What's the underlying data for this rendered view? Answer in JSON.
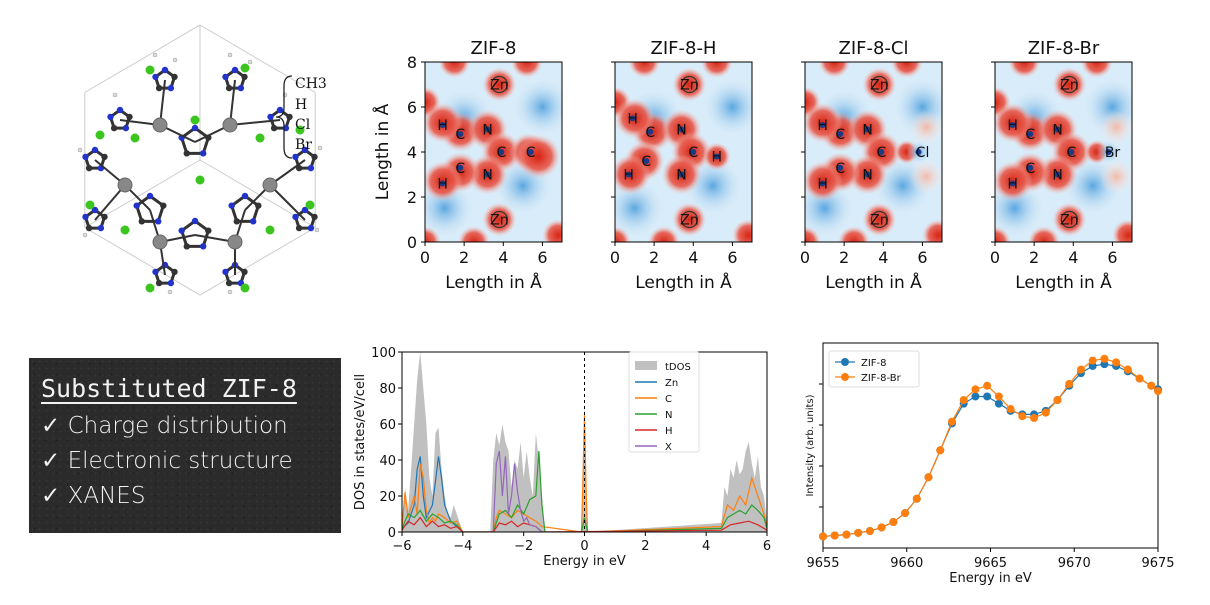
{
  "molecule": {
    "substituents": [
      "CH$_3$",
      "H",
      "Cl",
      "Br"
    ],
    "substituent_display": [
      "CH3",
      "H",
      "Cl",
      "Br"
    ]
  },
  "blackboard": {
    "title": "Substituted ZIF-8",
    "items": [
      "Charge distribution",
      "Electronic structure",
      "XANES"
    ]
  },
  "chart_data": [
    {
      "type": "heatmap",
      "panels": [
        {
          "title": "ZIF-8",
          "substituent": "C"
        },
        {
          "title": "ZIF-8-H",
          "substituent": "H"
        },
        {
          "title": "ZIF-8-Cl",
          "substituent": "Cl"
        },
        {
          "title": "ZIF-8-Br",
          "substituent": "Br"
        }
      ],
      "xlabel": "Length in Å",
      "ylabel": "Length in Å",
      "xlim": [
        0,
        7
      ],
      "ylim": [
        0,
        8
      ],
      "xticks": [
        0,
        2,
        4,
        6
      ],
      "yticks": [
        0,
        2,
        4,
        6,
        8
      ],
      "atom_labels": [
        "Zn",
        "N",
        "C",
        "H"
      ]
    },
    {
      "type": "area",
      "xlabel": "Energy in eV",
      "ylabel": "DOS in states/eV/cell",
      "xlim": [
        -6,
        6
      ],
      "ylim": [
        0,
        100
      ],
      "xticks": [
        -6,
        -4,
        -2,
        0,
        2,
        4,
        6
      ],
      "yticks": [
        0,
        20,
        40,
        60,
        80,
        100
      ],
      "fermi_level": 0,
      "legend": [
        "tDOS",
        "Zn",
        "C",
        "N",
        "H",
        "X"
      ],
      "colors": {
        "tDOS": "#c0c0c0",
        "Zn": "#1f77b4",
        "C": "#ff7f0e",
        "N": "#2ca02c",
        "H": "#d62728",
        "X": "#9467bd"
      },
      "series": [
        {
          "name": "tDOS",
          "x": [
            -6,
            -5.9,
            -5.8,
            -5.7,
            -5.6,
            -5.5,
            -5.4,
            -5.3,
            -5.2,
            -5.1,
            -5.0,
            -4.9,
            -4.8,
            -4.7,
            -4.6,
            -4.5,
            -4.4,
            -4.3,
            -4.2,
            -4.1,
            -4.0,
            -3.1,
            -3.0,
            -2.9,
            -2.8,
            -2.7,
            -2.6,
            -2.5,
            -2.4,
            -2.3,
            -2.2,
            -2.1,
            -2.0,
            -1.9,
            -1.8,
            -1.7,
            -1.6,
            -1.5,
            -1.4,
            -1.3,
            -0.1,
            -0.05,
            0,
            0.05,
            0.1,
            4.5,
            4.6,
            4.7,
            4.8,
            4.9,
            5.0,
            5.1,
            5.2,
            5.3,
            5.4,
            5.5,
            5.6,
            5.7,
            5.8,
            5.9,
            6.0
          ],
          "y": [
            5,
            25,
            12,
            35,
            60,
            85,
            100,
            80,
            60,
            30,
            20,
            55,
            58,
            35,
            20,
            10,
            8,
            15,
            10,
            5,
            0,
            0,
            40,
            55,
            48,
            60,
            50,
            45,
            25,
            40,
            35,
            50,
            30,
            45,
            30,
            20,
            55,
            40,
            20,
            0,
            0,
            35,
            72,
            30,
            0,
            5,
            25,
            20,
            35,
            30,
            40,
            32,
            35,
            45,
            50,
            38,
            30,
            42,
            25,
            20,
            5
          ]
        },
        {
          "name": "Zn",
          "x": [
            -6,
            -5.8,
            -5.6,
            -5.5,
            -5.4,
            -5.3,
            -5.2,
            -5.0,
            -4.9,
            -4.8,
            -4.7,
            -4.6,
            -4.4,
            -4.2,
            -4.0
          ],
          "y": [
            2,
            5,
            15,
            35,
            42,
            20,
            8,
            15,
            28,
            42,
            30,
            15,
            6,
            3,
            0
          ]
        },
        {
          "name": "C",
          "x": [
            -6,
            -5.9,
            -5.8,
            -5.6,
            -5.5,
            -5.4,
            -5.3,
            -5.2,
            -5.1,
            -5.0,
            -4.9,
            -4.8,
            -4.6,
            -4.4,
            -4.2,
            -4.0,
            -3.0,
            -2.9,
            -2.8,
            -2.6,
            -2.4,
            -2.2,
            -2.0,
            -1.8,
            -1.6,
            -1.4,
            -0.1,
            -0.05,
            0,
            0.05,
            0.1,
            4.5,
            4.7,
            4.9,
            5.1,
            5.3,
            5.5,
            5.7,
            5.9,
            6.0
          ],
          "y": [
            3,
            22,
            8,
            20,
            10,
            38,
            30,
            12,
            5,
            8,
            6,
            10,
            8,
            5,
            6,
            0,
            0,
            8,
            12,
            10,
            8,
            12,
            10,
            8,
            6,
            3,
            0,
            30,
            65,
            25,
            0,
            3,
            15,
            12,
            20,
            15,
            30,
            20,
            10,
            3
          ]
        },
        {
          "name": "N",
          "x": [
            -6,
            -5.8,
            -5.6,
            -5.4,
            -5.2,
            -5.0,
            -4.8,
            -4.6,
            -4.4,
            -4.2,
            -4.0,
            -3.0,
            -2.8,
            -2.6,
            -2.4,
            -2.2,
            -2.0,
            -1.8,
            -1.6,
            -1.5,
            -1.4,
            -1.3,
            -0.1,
            0,
            0.1,
            4.5,
            4.7,
            4.9,
            5.1,
            5.3,
            5.5,
            5.7,
            5.9,
            6.0
          ],
          "y": [
            2,
            10,
            8,
            12,
            6,
            10,
            8,
            5,
            6,
            4,
            0,
            0,
            10,
            12,
            8,
            15,
            10,
            18,
            20,
            45,
            15,
            0,
            0,
            8,
            0,
            2,
            8,
            10,
            12,
            10,
            15,
            12,
            8,
            2
          ]
        },
        {
          "name": "H",
          "x": [
            -6,
            -5.8,
            -5.6,
            -5.4,
            -5.2,
            -5.0,
            -4.8,
            -4.6,
            -4.4,
            -4.2,
            -4.0,
            -3.0,
            -2.8,
            -2.6,
            -2.4,
            -2.2,
            -2.0,
            -1.8,
            -1.6,
            -1.4,
            4.5,
            4.8,
            5.1,
            5.4,
            5.7,
            6.0
          ],
          "y": [
            1,
            6,
            4,
            8,
            3,
            6,
            3,
            4,
            2,
            3,
            0,
            0,
            5,
            4,
            6,
            3,
            5,
            4,
            3,
            0,
            1,
            4,
            5,
            6,
            4,
            1
          ]
        },
        {
          "name": "X",
          "x": [
            -3.0,
            -2.9,
            -2.8,
            -2.7,
            -2.6,
            -2.5,
            -2.4,
            -2.3,
            -2.2,
            -2.1,
            -2.0,
            -1.9,
            -1.8,
            -1.6,
            -1.4
          ],
          "y": [
            0,
            38,
            45,
            20,
            42,
            10,
            20,
            38,
            22,
            12,
            6,
            8,
            4,
            3,
            0
          ]
        }
      ]
    },
    {
      "type": "line",
      "xlabel": "Energy in eV",
      "ylabel": "Intensity (arb. units)",
      "xlim": [
        9655,
        9675
      ],
      "xticks": [
        9655,
        9660,
        9665,
        9670,
        9675
      ],
      "legend_loc": "top-left",
      "series": [
        {
          "name": "ZIF-8",
          "color": "#1f77b4",
          "x": [
            9655,
            9655.7,
            9656.4,
            9657.1,
            9657.8,
            9658.5,
            9659.2,
            9659.9,
            9660.6,
            9661.3,
            9662.0,
            9662.7,
            9663.4,
            9664.1,
            9664.8,
            9665.5,
            9666.2,
            9666.9,
            9667.6,
            9668.3,
            9669.0,
            9669.7,
            9670.4,
            9671.1,
            9671.8,
            9672.5,
            9673.2,
            9673.9,
            9674.6,
            9675
          ],
          "y": [
            0.02,
            0.025,
            0.03,
            0.04,
            0.05,
            0.07,
            0.1,
            0.15,
            0.23,
            0.35,
            0.5,
            0.65,
            0.76,
            0.8,
            0.8,
            0.76,
            0.72,
            0.7,
            0.7,
            0.72,
            0.78,
            0.86,
            0.93,
            0.97,
            0.98,
            0.97,
            0.94,
            0.9,
            0.86,
            0.84
          ]
        },
        {
          "name": "ZIF-8-Br",
          "color": "#ff7f0e",
          "x": [
            9655,
            9655.7,
            9656.4,
            9657.1,
            9657.8,
            9658.5,
            9659.2,
            9659.9,
            9660.6,
            9661.3,
            9662.0,
            9662.7,
            9663.4,
            9664.1,
            9664.8,
            9665.5,
            9666.2,
            9666.9,
            9667.6,
            9668.3,
            9669.0,
            9669.7,
            9670.4,
            9671.1,
            9671.8,
            9672.5,
            9673.2,
            9673.9,
            9674.6,
            9675
          ],
          "y": [
            0.02,
            0.025,
            0.03,
            0.04,
            0.05,
            0.07,
            0.1,
            0.15,
            0.23,
            0.35,
            0.5,
            0.66,
            0.78,
            0.84,
            0.86,
            0.8,
            0.73,
            0.69,
            0.68,
            0.71,
            0.78,
            0.87,
            0.95,
            1.0,
            1.01,
            0.99,
            0.95,
            0.9,
            0.86,
            0.83
          ]
        }
      ]
    }
  ]
}
